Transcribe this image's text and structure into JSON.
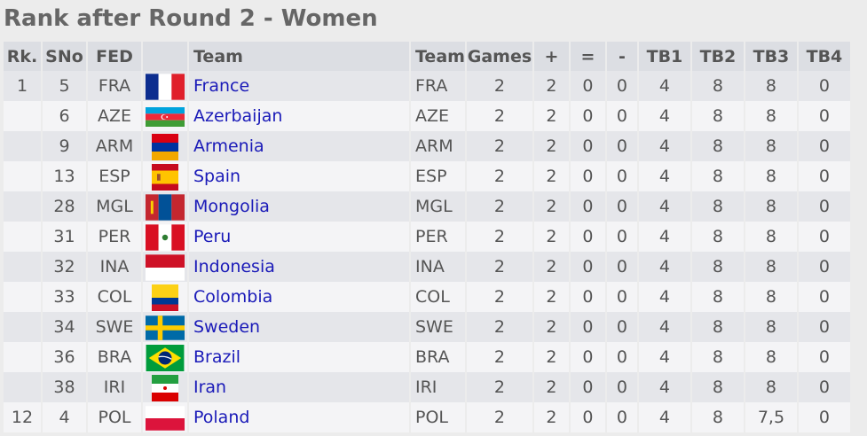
{
  "page": {
    "title": "Rank after Round 2 - Women"
  },
  "table": {
    "headers": [
      "Rk.",
      "SNo",
      "FED",
      "",
      "Team",
      "Team",
      "Games",
      "+",
      "=",
      "-",
      "TB1",
      "TB2",
      "TB3",
      "TB4"
    ],
    "rows": [
      {
        "rk": "1",
        "sno": "5",
        "fed": "FRA",
        "flag": "flag-france",
        "team": "France",
        "code": "FRA",
        "games": "2",
        "plus": "2",
        "eq": "0",
        "minus": "0",
        "tb1": "4",
        "tb2": "8",
        "tb3": "8",
        "tb4": "0"
      },
      {
        "rk": "",
        "sno": "6",
        "fed": "AZE",
        "flag": "flag-azerbaijan",
        "team": "Azerbaijan",
        "code": "AZE",
        "games": "2",
        "plus": "2",
        "eq": "0",
        "minus": "0",
        "tb1": "4",
        "tb2": "8",
        "tb3": "8",
        "tb4": "0"
      },
      {
        "rk": "",
        "sno": "9",
        "fed": "ARM",
        "flag": "flag-armenia",
        "team": "Armenia",
        "code": "ARM",
        "games": "2",
        "plus": "2",
        "eq": "0",
        "minus": "0",
        "tb1": "4",
        "tb2": "8",
        "tb3": "8",
        "tb4": "0"
      },
      {
        "rk": "",
        "sno": "13",
        "fed": "ESP",
        "flag": "flag-spain",
        "team": "Spain",
        "code": "ESP",
        "games": "2",
        "plus": "2",
        "eq": "0",
        "minus": "0",
        "tb1": "4",
        "tb2": "8",
        "tb3": "8",
        "tb4": "0"
      },
      {
        "rk": "",
        "sno": "28",
        "fed": "MGL",
        "flag": "flag-mongolia",
        "team": "Mongolia",
        "code": "MGL",
        "games": "2",
        "plus": "2",
        "eq": "0",
        "minus": "0",
        "tb1": "4",
        "tb2": "8",
        "tb3": "8",
        "tb4": "0"
      },
      {
        "rk": "",
        "sno": "31",
        "fed": "PER",
        "flag": "flag-peru",
        "team": "Peru",
        "code": "PER",
        "games": "2",
        "plus": "2",
        "eq": "0",
        "minus": "0",
        "tb1": "4",
        "tb2": "8",
        "tb3": "8",
        "tb4": "0"
      },
      {
        "rk": "",
        "sno": "32",
        "fed": "INA",
        "flag": "flag-indonesia",
        "team": "Indonesia",
        "code": "INA",
        "games": "2",
        "plus": "2",
        "eq": "0",
        "minus": "0",
        "tb1": "4",
        "tb2": "8",
        "tb3": "8",
        "tb4": "0"
      },
      {
        "rk": "",
        "sno": "33",
        "fed": "COL",
        "flag": "flag-colombia",
        "team": "Colombia",
        "code": "COL",
        "games": "2",
        "plus": "2",
        "eq": "0",
        "minus": "0",
        "tb1": "4",
        "tb2": "8",
        "tb3": "8",
        "tb4": "0"
      },
      {
        "rk": "",
        "sno": "34",
        "fed": "SWE",
        "flag": "flag-sweden",
        "team": "Sweden",
        "code": "SWE",
        "games": "2",
        "plus": "2",
        "eq": "0",
        "minus": "0",
        "tb1": "4",
        "tb2": "8",
        "tb3": "8",
        "tb4": "0"
      },
      {
        "rk": "",
        "sno": "36",
        "fed": "BRA",
        "flag": "flag-brazil",
        "team": "Brazil",
        "code": "BRA",
        "games": "2",
        "plus": "2",
        "eq": "0",
        "minus": "0",
        "tb1": "4",
        "tb2": "8",
        "tb3": "8",
        "tb4": "0"
      },
      {
        "rk": "",
        "sno": "38",
        "fed": "IRI",
        "flag": "flag-iran",
        "team": "Iran",
        "code": "IRI",
        "games": "2",
        "plus": "2",
        "eq": "0",
        "minus": "0",
        "tb1": "4",
        "tb2": "8",
        "tb3": "8",
        "tb4": "0"
      },
      {
        "rk": "12",
        "sno": "4",
        "fed": "POL",
        "flag": "flag-poland",
        "team": "Poland",
        "code": "POL",
        "games": "2",
        "plus": "2",
        "eq": "0",
        "minus": "0",
        "tb1": "4",
        "tb2": "8",
        "tb3": "7,5",
        "tb4": "0"
      }
    ]
  },
  "colors": {
    "link": "#1a1ab8",
    "header_bg": "#dcdee3",
    "row_odd": "#e5e6ea",
    "row_even": "#f4f4f6"
  }
}
